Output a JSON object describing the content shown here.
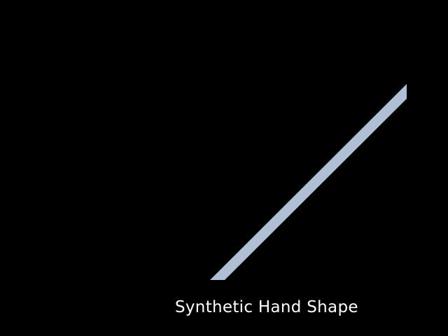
{
  "caption": "Synthetic Hand Shape",
  "colors": {
    "background": "#000000",
    "shape_fill": "#b0c0d4",
    "caption_text": "#ffffff"
  }
}
